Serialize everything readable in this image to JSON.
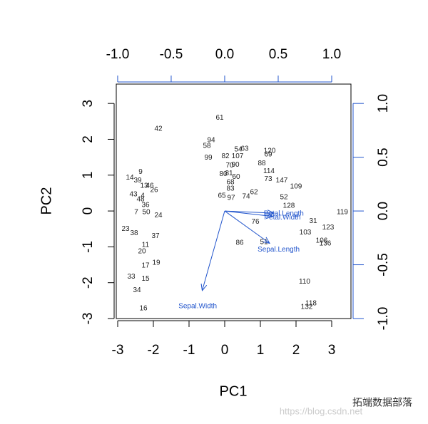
{
  "chart_data": {
    "type": "biplot",
    "xlabel": "PC1",
    "ylabel": "PC2",
    "xlim": [
      -3.04,
      3.54
    ],
    "ylim": [
      -3.0,
      3.54
    ],
    "xticks": [
      -3,
      -2,
      -1,
      0,
      1,
      2,
      3
    ],
    "yticks": [
      -3,
      -2,
      -1,
      0,
      1,
      2,
      3
    ],
    "x2lim": [
      -1.013,
      1.18
    ],
    "y2lim": [
      -1.0,
      1.18
    ],
    "x2ticks": [
      {
        "value": -1.0,
        "label": "-1.0"
      },
      {
        "value": -0.5,
        "label": "-0.5"
      },
      {
        "value": 0.0,
        "label": "0.0"
      },
      {
        "value": 0.5,
        "label": "0.5"
      },
      {
        "value": 1.0,
        "label": "1.0"
      }
    ],
    "y2ticks": [
      {
        "value": -1.0,
        "label": "-1.0"
      },
      {
        "value": -0.5,
        "label": "-0.5"
      },
      {
        "value": 0.0,
        "label": "0.0"
      },
      {
        "value": 0.5,
        "label": "0.5"
      },
      {
        "value": 1.0,
        "label": "1.0"
      }
    ],
    "points": {
      "color": "#222222",
      "labels": [
        "61",
        "42",
        "94",
        "58",
        "99",
        "54",
        "63",
        "82",
        "107",
        "120",
        "69",
        "88",
        "70",
        "90",
        "114",
        "80",
        "81",
        "60",
        "73",
        "147",
        "109",
        "9",
        "14",
        "39",
        "13",
        "46",
        "26",
        "43",
        "4",
        "48",
        "65",
        "97",
        "68",
        "83",
        "74",
        "62",
        "52",
        "128",
        "36",
        "7",
        "50",
        "24",
        "119",
        "23",
        "38",
        "31",
        "123",
        "103",
        "106",
        "136",
        "86",
        "76",
        "51",
        "110",
        "118",
        "132",
        "37",
        "33",
        "15",
        "34",
        "16",
        "17",
        "19",
        "11",
        "20"
      ],
      "x": [
        -0.14,
        -1.86,
        -0.38,
        -0.5,
        -0.46,
        0.38,
        0.56,
        0.02,
        0.36,
        1.26,
        1.22,
        1.04,
        0.14,
        0.3,
        1.24,
        -0.04,
        0.12,
        0.32,
        1.22,
        1.6,
        2.0,
        -2.36,
        -2.66,
        -2.44,
        -2.26,
        -2.1,
        -1.98,
        -2.56,
        -2.3,
        -2.36,
        -0.08,
        0.18,
        0.16,
        0.16,
        0.6,
        0.82,
        1.66,
        1.8,
        -2.22,
        -2.48,
        -2.2,
        -1.86,
        3.3,
        -2.78,
        -2.54,
        2.48,
        2.9,
        2.26,
        2.72,
        2.82,
        0.42,
        0.86,
        1.1,
        2.24,
        2.42,
        2.3,
        -1.94,
        -2.62,
        -2.22,
        -2.46,
        -2.28,
        -2.22,
        -1.92,
        -2.22,
        -2.32
      ],
      "y": [
        2.6,
        2.29,
        1.97,
        1.81,
        1.49,
        1.71,
        1.73,
        1.53,
        1.53,
        1.67,
        1.57,
        1.33,
        1.27,
        1.29,
        1.11,
        1.03,
        1.05,
        0.95,
        0.89,
        0.85,
        0.68,
        1.09,
        0.93,
        0.85,
        0.7,
        0.7,
        0.58,
        0.46,
        0.42,
        0.32,
        0.42,
        0.36,
        0.8,
        0.62,
        0.4,
        0.52,
        0.38,
        0.14,
        0.16,
        -0.04,
        -0.04,
        -0.12,
        -0.04,
        -0.5,
        -0.62,
        -0.28,
        -0.46,
        -0.6,
        -0.83,
        -0.91,
        -0.89,
        -0.3,
        -0.87,
        -1.97,
        -2.58,
        -2.68,
        -0.7,
        -1.83,
        -1.89,
        -2.21,
        -2.72,
        -1.53,
        -1.45,
        -0.95,
        -1.13
      ]
    },
    "arrows": {
      "color": "#2255cc",
      "labels": [
        "Sepal.Length",
        "Sepal.Width",
        "Petal.Length",
        "Petal.Width"
      ],
      "x": [
        0.42,
        -0.21,
        0.46,
        0.45
      ],
      "y": [
        -0.3,
        -0.74,
        -0.02,
        -0.05
      ]
    }
  },
  "watermark": {
    "brand": "拓端数据部落",
    "url": "https://blog.csdn.net"
  }
}
